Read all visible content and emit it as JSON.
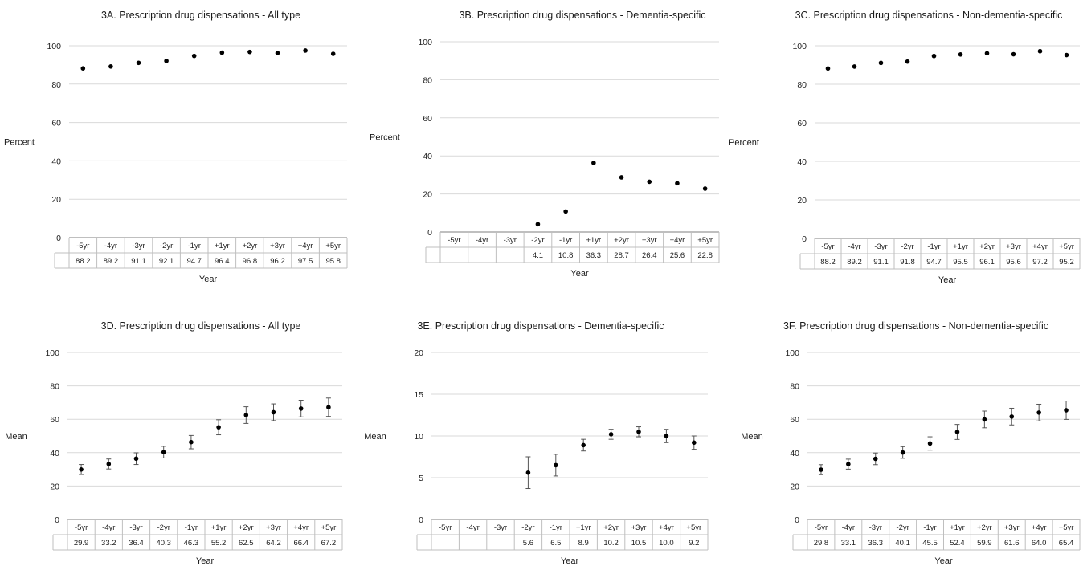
{
  "chart_data": [
    {
      "type": "scatter",
      "title": "3A. Prescription drug dispensations - All type",
      "ylabel": "Percent",
      "xlabel": "Year",
      "ylim": [
        0,
        100
      ],
      "yticks": [
        "0",
        "20",
        "40",
        "60",
        "80",
        "100"
      ],
      "categories": [
        "-5yr",
        "-4yr",
        "-3yr",
        "-2yr",
        "-1yr",
        "+1yr",
        "+2yr",
        "+3yr",
        "+4yr",
        "+5yr"
      ],
      "values": [
        88.2,
        89.2,
        91.1,
        92.1,
        94.7,
        96.4,
        96.8,
        96.2,
        97.5,
        95.8
      ],
      "table_values": [
        "88.2",
        "89.2",
        "91.1",
        "92.1",
        "94.7",
        "96.4",
        "96.8",
        "96.2",
        "97.5",
        "95.8"
      ],
      "error_bars": false
    },
    {
      "type": "scatter",
      "title": "3B. Prescription drug dispensations - Dementia-specific",
      "ylabel": "Percent",
      "xlabel": "Year",
      "ylim": [
        0,
        100
      ],
      "yticks": [
        "0",
        "20",
        "40",
        "60",
        "80",
        "100"
      ],
      "categories": [
        "-5yr",
        "-4yr",
        "-3yr",
        "-2yr",
        "-1yr",
        "+1yr",
        "+2yr",
        "+3yr",
        "+4yr",
        "+5yr"
      ],
      "values": [
        null,
        null,
        null,
        4.1,
        10.8,
        36.3,
        28.7,
        26.4,
        25.6,
        22.8
      ],
      "table_values": [
        "",
        "",
        "",
        "4.1",
        "10.8",
        "36.3",
        "28.7",
        "26.4",
        "25.6",
        "22.8"
      ],
      "error_bars": false
    },
    {
      "type": "scatter",
      "title": "3C. Prescription drug dispensations - Non-dementia-specific",
      "ylabel": "Percent",
      "xlabel": "Year",
      "ylim": [
        0,
        100
      ],
      "yticks": [
        "0",
        "20",
        "40",
        "60",
        "80",
        "100"
      ],
      "categories": [
        "-5yr",
        "-4yr",
        "-3yr",
        "-2yr",
        "-1yr",
        "+1yr",
        "+2yr",
        "+3yr",
        "+4yr",
        "+5yr"
      ],
      "values": [
        88.2,
        89.2,
        91.1,
        91.8,
        94.7,
        95.5,
        96.1,
        95.6,
        97.2,
        95.2
      ],
      "table_values": [
        "88.2",
        "89.2",
        "91.1",
        "91.8",
        "94.7",
        "95.5",
        "96.1",
        "95.6",
        "97.2",
        "95.2"
      ],
      "error_bars": false
    },
    {
      "type": "scatter",
      "title": "3D. Prescription drug dispensations - All type",
      "ylabel": "Mean",
      "xlabel": "Year",
      "ylim": [
        0,
        100
      ],
      "yticks": [
        "0",
        "20",
        "40",
        "60",
        "80",
        "100"
      ],
      "categories": [
        "-5yr",
        "-4yr",
        "-3yr",
        "-2yr",
        "-1yr",
        "+1yr",
        "+2yr",
        "+3yr",
        "+4yr",
        "+5yr"
      ],
      "values": [
        29.9,
        33.2,
        36.4,
        40.3,
        46.3,
        55.2,
        62.5,
        64.2,
        66.4,
        67.2
      ],
      "table_values": [
        "29.9",
        "33.2",
        "36.4",
        "40.3",
        "46.3",
        "55.2",
        "62.5",
        "64.2",
        "66.4",
        "67.2"
      ],
      "error_bars": true,
      "err": [
        3,
        3,
        3.5,
        3.5,
        4,
        4.5,
        5,
        5,
        5,
        5.5
      ]
    },
    {
      "type": "scatter",
      "title": "3E. Prescription drug dispensations - Dementia-specific",
      "ylabel": "Mean",
      "xlabel": "Year",
      "ylim": [
        0,
        20
      ],
      "yticks": [
        "0",
        "5",
        "10",
        "15",
        "20"
      ],
      "categories": [
        "-5yr",
        "-4yr",
        "-3yr",
        "-2yr",
        "-1yr",
        "+1yr",
        "+2yr",
        "+3yr",
        "+4yr",
        "+5yr"
      ],
      "values": [
        null,
        null,
        null,
        5.6,
        6.5,
        8.9,
        10.2,
        10.5,
        10.0,
        9.2
      ],
      "table_values": [
        "",
        "",
        "",
        "5.6",
        "6.5",
        "8.9",
        "10.2",
        "10.5",
        "10.0",
        "9.2"
      ],
      "error_bars": true,
      "err": [
        0,
        0,
        0,
        1.9,
        1.3,
        0.7,
        0.6,
        0.6,
        0.8,
        0.8
      ]
    },
    {
      "type": "scatter",
      "title": "3F. Prescription drug dispensations - Non-dementia-specific",
      "ylabel": "Mean",
      "xlabel": "Year",
      "ylim": [
        0,
        100
      ],
      "yticks": [
        "0",
        "20",
        "40",
        "60",
        "80",
        "100"
      ],
      "categories": [
        "-5yr",
        "-4yr",
        "-3yr",
        "-2yr",
        "-1yr",
        "+1yr",
        "+2yr",
        "+3yr",
        "+4yr",
        "+5yr"
      ],
      "values": [
        29.8,
        33.1,
        36.3,
        40.1,
        45.5,
        52.4,
        59.9,
        61.6,
        64.0,
        65.4
      ],
      "table_values": [
        "29.8",
        "33.1",
        "36.3",
        "40.1",
        "45.5",
        "52.4",
        "59.9",
        "61.6",
        "64.0",
        "65.4"
      ],
      "error_bars": true,
      "err": [
        3,
        3,
        3.5,
        3.5,
        4,
        4.5,
        5,
        5,
        5,
        5.5
      ]
    }
  ],
  "colors": {
    "marker": "#000000",
    "grid": "#d9d9d9",
    "axis": "#7f7f7f",
    "table": "#bfbfbf",
    "errorbar": "#555555"
  }
}
